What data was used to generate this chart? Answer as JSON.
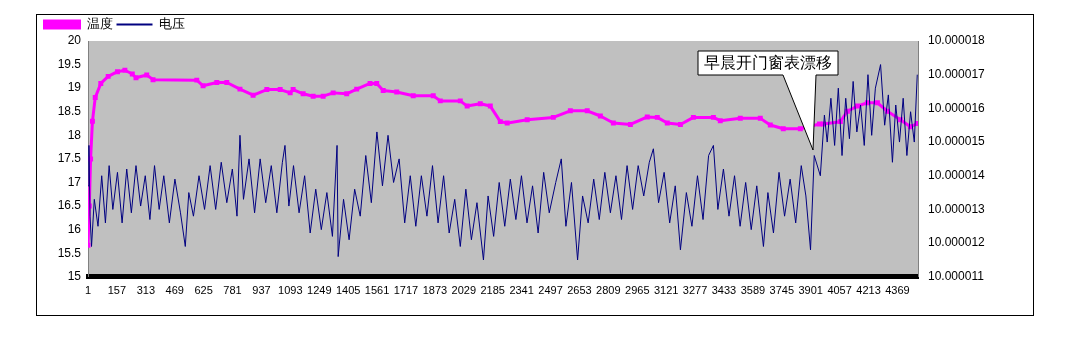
{
  "chart_data": {
    "type": "line",
    "legend": "top left",
    "xlim": [
      1,
      4480
    ],
    "xticks": [
      1,
      157,
      313,
      469,
      625,
      781,
      937,
      1093,
      1249,
      1405,
      1561,
      1717,
      1873,
      2029,
      2185,
      2341,
      2497,
      2653,
      2809,
      2965,
      3121,
      3277,
      3433,
      3589,
      3745,
      3901,
      4057,
      4213,
      4369
    ],
    "ylim": [
      15,
      20
    ],
    "yticks": [
      15,
      15.5,
      16,
      16.5,
      17,
      17.5,
      18,
      18.5,
      19,
      19.5,
      20
    ],
    "y2lim": [
      10.000011,
      10.000018
    ],
    "y2ticks": [
      10.000011,
      10.000012,
      10.000013,
      10.000014,
      10.000015,
      10.000016,
      10.000017,
      10.000018
    ],
    "annotations": [
      "早晨开门窗表漂移"
    ],
    "series": [
      {
        "name": "温度",
        "color": "#ff00ff",
        "marker": "square",
        "x": [
          1,
          8,
          15,
          25,
          40,
          70,
          110,
          160,
          200,
          240,
          260,
          318,
          352,
          588,
          622,
          696,
          750,
          821,
          892,
          966,
          1038,
          1092,
          1108,
          1162,
          1216,
          1270,
          1324,
          1397,
          1451,
          1523,
          1559,
          1594,
          1667,
          1756,
          1864,
          1902,
          2010,
          2047,
          2118,
          2172,
          2226,
          2263,
          2371,
          2512,
          2604,
          2695,
          2766,
          2836,
          2928,
          3019,
          3073,
          3127,
          3198,
          3268,
          3376,
          3413,
          3521,
          3629,
          3683,
          3753,
          3845,
          3948,
          3970,
          4061,
          4099,
          4153,
          4207,
          4261,
          4315,
          4385,
          4439,
          4476
        ],
        "values": [
          15.67,
          16.5,
          17.5,
          18.3,
          18.8,
          19.1,
          19.25,
          19.35,
          19.38,
          19.3,
          19.22,
          19.28,
          19.18,
          19.17,
          19.05,
          19.12,
          19.12,
          18.98,
          18.85,
          18.97,
          18.97,
          18.9,
          18.97,
          18.88,
          18.83,
          18.83,
          18.9,
          18.88,
          18.98,
          19.1,
          19.1,
          18.95,
          18.92,
          18.84,
          18.84,
          18.73,
          18.73,
          18.62,
          18.67,
          18.62,
          18.29,
          18.26,
          18.33,
          18.38,
          18.52,
          18.52,
          18.41,
          18.26,
          18.23,
          18.39,
          18.38,
          18.26,
          18.23,
          18.38,
          18.38,
          18.31,
          18.36,
          18.36,
          18.22,
          18.14,
          18.14,
          18.24,
          18.24,
          18.29,
          18.51,
          18.62,
          18.69,
          18.69,
          18.51,
          18.33,
          18.18,
          18.25
        ]
      },
      {
        "name": "电压",
        "color": "#000080",
        "marker": "none",
        "axis": "y2",
        "x": [
          1,
          6,
          12,
          20,
          35,
          55,
          75,
          95,
          115,
          135,
          160,
          185,
          210,
          235,
          260,
          285,
          310,
          335,
          360,
          385,
          410,
          440,
          470,
          500,
          526,
          545,
          570,
          600,
          630,
          660,
          690,
          720,
          750,
          780,
          805,
          821,
          840,
          870,
          900,
          930,
          960,
          990,
          1020,
          1050,
          1064,
          1085,
          1110,
          1140,
          1170,
          1200,
          1230,
          1260,
          1290,
          1320,
          1345,
          1351,
          1380,
          1410,
          1440,
          1470,
          1500,
          1530,
          1560,
          1590,
          1620,
          1650,
          1680,
          1710,
          1740,
          1770,
          1800,
          1830,
          1860,
          1890,
          1920,
          1950,
          1980,
          2010,
          2040,
          2070,
          2100,
          2135,
          2160,
          2190,
          2220,
          2250,
          2280,
          2310,
          2340,
          2370,
          2400,
          2430,
          2460,
          2490,
          2525,
          2555,
          2580,
          2610,
          2643,
          2670,
          2700,
          2730,
          2760,
          2790,
          2820,
          2850,
          2880,
          2910,
          2940,
          2970,
          3000,
          3030,
          3052,
          3080,
          3110,
          3140,
          3170,
          3198,
          3230,
          3260,
          3290,
          3320,
          3350,
          3376,
          3400,
          3430,
          3460,
          3490,
          3520,
          3550,
          3580,
          3610,
          3646,
          3670,
          3700,
          3730,
          3760,
          3790,
          3820,
          3850,
          3875,
          3900,
          3920,
          3953,
          3975,
          3990,
          4010,
          4030,
          4050,
          4070,
          4090,
          4110,
          4130,
          4150,
          4170,
          4190,
          4210,
          4230,
          4250,
          4278,
          4300,
          4320,
          4342,
          4360,
          4380,
          4400,
          4420,
          4440,
          4460,
          4476
        ],
        "values": [
          10.0000137,
          10.0000149,
          10.0000128,
          10.0000119,
          10.0000133,
          10.0000125,
          10.000014,
          10.0000126,
          10.0000143,
          10.000013,
          10.0000141,
          10.0000126,
          10.0000142,
          10.0000129,
          10.0000143,
          10.0000131,
          10.000014,
          10.0000127,
          10.0000143,
          10.000013,
          10.000014,
          10.0000126,
          10.0000139,
          10.0000129,
          10.0000119,
          10.0000135,
          10.0000128,
          10.000014,
          10.000013,
          10.0000143,
          10.000013,
          10.0000144,
          10.0000132,
          10.0000142,
          10.0000128,
          10.0000152,
          10.0000133,
          10.0000145,
          10.0000129,
          10.0000145,
          10.0000132,
          10.0000143,
          10.0000129,
          10.0000144,
          10.0000149,
          10.0000131,
          10.0000143,
          10.0000129,
          10.000014,
          10.0000123,
          10.0000136,
          10.0000124,
          10.0000135,
          10.0000122,
          10.0000149,
          10.0000116,
          10.0000133,
          10.0000121,
          10.0000136,
          10.0000128,
          10.0000146,
          10.0000132,
          10.0000153,
          10.0000137,
          10.0000152,
          10.0000138,
          10.0000145,
          10.0000126,
          10.000014,
          10.0000125,
          10.000014,
          10.0000128,
          10.0000143,
          10.0000126,
          10.000014,
          10.0000123,
          10.0000133,
          10.0000119,
          10.0000136,
          10.0000121,
          10.0000132,
          10.0000115,
          10.0000134,
          10.0000122,
          10.0000138,
          10.0000125,
          10.0000139,
          10.0000127,
          10.000014,
          10.0000126,
          10.0000137,
          10.0000123,
          10.0000141,
          10.0000129,
          10.0000138,
          10.0000145,
          10.0000125,
          10.0000138,
          10.0000115,
          10.0000134,
          10.0000126,
          10.0000139,
          10.0000127,
          10.0000141,
          10.0000129,
          10.000014,
          10.0000127,
          10.0000143,
          10.000013,
          10.0000143,
          10.0000134,
          10.0000144,
          10.0000148,
          10.0000132,
          10.0000141,
          10.0000126,
          10.0000137,
          10.0000118,
          10.0000135,
          10.0000125,
          10.000014,
          10.0000127,
          10.0000146,
          10.0000149,
          10.000013,
          10.0000142,
          10.0000128,
          10.000014,
          10.0000125,
          10.0000138,
          10.0000124,
          10.0000137,
          10.0000119,
          10.0000135,
          10.0000123,
          10.0000141,
          10.0000128,
          10.0000139,
          10.0000126,
          10.0000143,
          10.0000134,
          10.0000118,
          10.0000146,
          10.000014,
          10.0000158,
          10.000015,
          10.0000163,
          10.0000149,
          10.0000166,
          10.0000146,
          10.0000163,
          10.0000151,
          10.0000168,
          10.0000153,
          10.0000161,
          10.0000149,
          10.000017,
          10.0000152,
          10.0000166,
          10.0000173,
          10.0000155,
          10.0000164,
          10.0000144,
          10.0000161,
          10.000015,
          10.0000163,
          10.0000146,
          10.0000159,
          10.000015,
          10.000017
        ]
      }
    ]
  }
}
